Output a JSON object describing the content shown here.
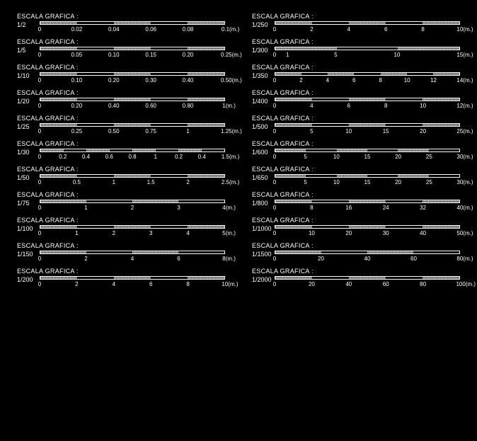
{
  "title_text": "ESCALA GRAFICA :",
  "unit_suffix": "(m.)",
  "bar_segments": 5,
  "segment_pattern": [
    "hatch",
    "open",
    "hatch",
    "open",
    "hatch"
  ],
  "colors": {
    "background": "#000000",
    "foreground": "#ffffff",
    "hatch_light": "#aaaaaa",
    "hatch_dark": "#555555"
  },
  "left_column": [
    {
      "ratio": "1/2",
      "ticks": [
        "0",
        "0.02",
        "0.04",
        "0.06",
        "0.08",
        "0.1"
      ]
    },
    {
      "ratio": "1/5",
      "ticks": [
        "0",
        "0.05",
        "0.10",
        "0.15",
        "0.20",
        "0.25"
      ]
    },
    {
      "ratio": "1/10",
      "ticks": [
        "0",
        "0.10",
        "0.20",
        "0.30",
        "0.40",
        "0.50"
      ]
    },
    {
      "ratio": "1/20",
      "ticks": [
        "0",
        "0.20",
        "0.40",
        "0.60",
        "0.80",
        "1"
      ]
    },
    {
      "ratio": "1/25",
      "ticks": [
        "0",
        "0.25",
        "0.50",
        "0.75",
        "1",
        "1.25"
      ]
    },
    {
      "ratio": "1/30",
      "ticks": [
        "0",
        "0.2",
        "0.4",
        "0.6",
        "0.8",
        "1",
        "0.2",
        "0.4",
        "1.5"
      ],
      "dense": true
    },
    {
      "ratio": "1/50",
      "ticks": [
        "0",
        "0.5",
        "1",
        "1.5",
        "2",
        "2.5"
      ]
    },
    {
      "ratio": "1/75",
      "ticks": [
        "0",
        "1",
        "2",
        "3",
        "4"
      ],
      "four": true
    },
    {
      "ratio": "1/100",
      "ticks": [
        "0",
        "1",
        "2",
        "3",
        "4",
        "5"
      ]
    },
    {
      "ratio": "1/150",
      "ticks": [
        "0",
        "2",
        "4",
        "6",
        "8"
      ],
      "four": true
    },
    {
      "ratio": "1/200",
      "ticks": [
        "0",
        "2",
        "4",
        "6",
        "8",
        "10"
      ]
    }
  ],
  "right_column": [
    {
      "ratio": "1/250",
      "ticks": [
        "0",
        "2",
        "4",
        "6",
        "8",
        "10"
      ]
    },
    {
      "ratio": "1/300",
      "ticks": [
        "0",
        "1",
        "5",
        "10",
        "15"
      ],
      "custom300": true
    },
    {
      "ratio": "1/350",
      "ticks": [
        "0",
        "2",
        "4",
        "6",
        "8",
        "10",
        "12",
        "14"
      ],
      "seven": true
    },
    {
      "ratio": "1/400",
      "ticks": [
        "0",
        "4",
        "6",
        "8",
        "10",
        "12"
      ]
    },
    {
      "ratio": "1/500",
      "ticks": [
        "0",
        "5",
        "10",
        "15",
        "20",
        "25"
      ],
      "title_spaced": true
    },
    {
      "ratio": "1/600",
      "ticks": [
        "0",
        "5",
        "10",
        "15",
        "20",
        "25",
        "30"
      ],
      "six": true
    },
    {
      "ratio": "1/650",
      "ticks": [
        "0",
        "5",
        "10",
        "15",
        "20",
        "25",
        "30"
      ],
      "six": true
    },
    {
      "ratio": "1/800",
      "ticks": [
        "0",
        "8",
        "16",
        "24",
        "32",
        "40"
      ]
    },
    {
      "ratio": "1/1000",
      "ticks": [
        "0",
        "10",
        "20",
        "30",
        "40",
        "50"
      ]
    },
    {
      "ratio": "1/1500",
      "ticks": [
        "0",
        "20",
        "40",
        "60",
        "80"
      ],
      "four": true
    },
    {
      "ratio": "1/2000",
      "ticks": [
        "0",
        "20",
        "40",
        "60",
        "80",
        "100"
      ]
    }
  ]
}
